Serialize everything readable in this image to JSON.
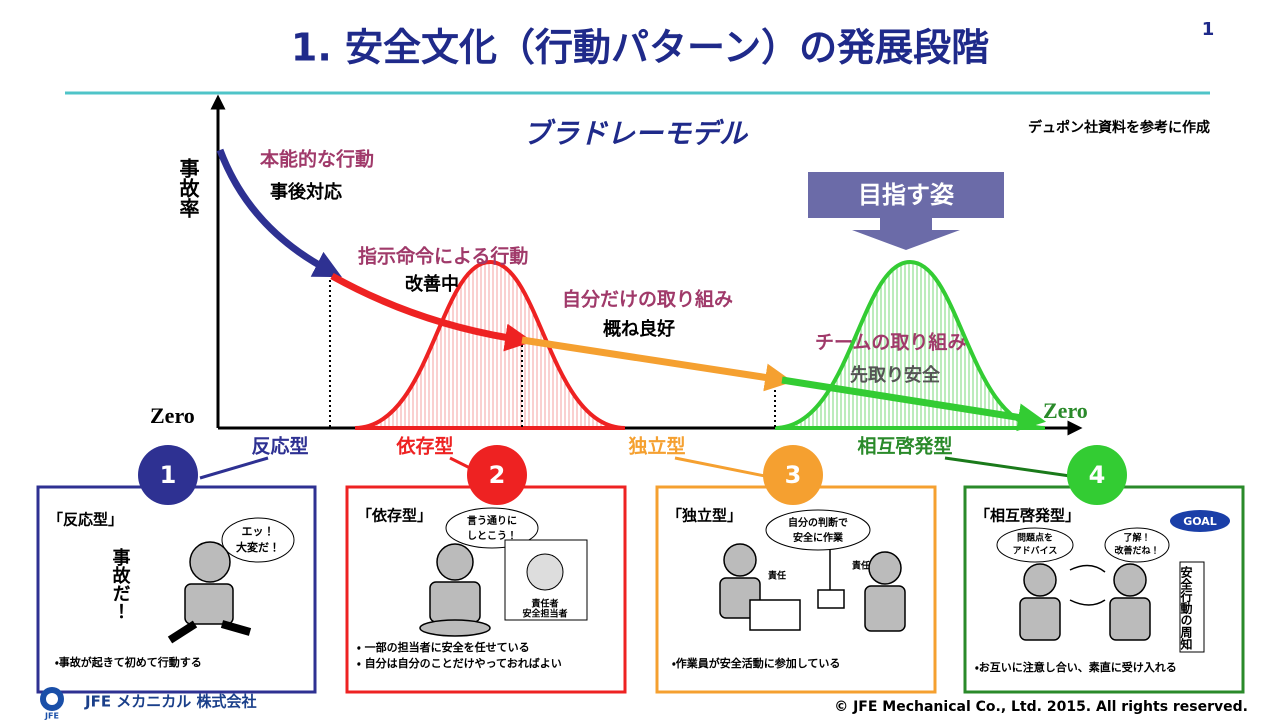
{
  "header": {
    "title": "1. 安全文化（行動パターン）の発展段階",
    "page_number": "1"
  },
  "diagram": {
    "model_title": "ブラドレーモデル",
    "source_note": "デュポン社資料を参考に作成",
    "y_axis_label": "事故率",
    "zero_left": "Zero",
    "zero_right": "Zero",
    "target": "目指す姿",
    "stages": [
      {
        "type": "反応型",
        "behavior": "本能的な行動",
        "status": "事後対応"
      },
      {
        "type": "依存型",
        "behavior": "指示命令による行動",
        "status": "改善中"
      },
      {
        "type": "独立型",
        "behavior": "自分だけの取り組み",
        "status": "概ね良好"
      },
      {
        "type": "相互啓発型",
        "behavior": "チームの取り組み",
        "status": "先取り安全"
      }
    ]
  },
  "panels": [
    {
      "number": "1",
      "title": "「反応型」",
      "speech": [
        "エッ！",
        "大変だ！"
      ],
      "shout": "事故だ！",
      "captions": [
        "・事故が起きて初めて行動する"
      ]
    },
    {
      "number": "2",
      "title": "「依存型」",
      "speech": [
        "言う通りに",
        "しとこう！"
      ],
      "tag": [
        "責任者",
        "安全担当者"
      ],
      "captions": [
        "・ 一部の担当者に安全を任せている",
        "・ 自分は自分のことだけやっておればよい"
      ]
    },
    {
      "number": "3",
      "title": "「独立型」",
      "speech": [
        "自分の判断で",
        "安全に作業"
      ],
      "tag": [
        "責任",
        "責任"
      ],
      "captions": [
        "・作業員が安全活動に参加している"
      ]
    },
    {
      "number": "4",
      "title": "「相互啓発型」",
      "speech": [
        "問題点を",
        "アドバイス"
      ],
      "reply": [
        "了解！",
        "改善だね！"
      ],
      "sign": "安全行動の周知",
      "badge": "GOAL",
      "captions": [
        "・お互いに注意し合い、素直に受け入れる"
      ]
    }
  ],
  "footer": {
    "logo_text": "JFE",
    "company": "JFE メカニカル 株式会社",
    "copyright": "© JFE Mechanical Co., Ltd. 2015. All rights reserved."
  }
}
